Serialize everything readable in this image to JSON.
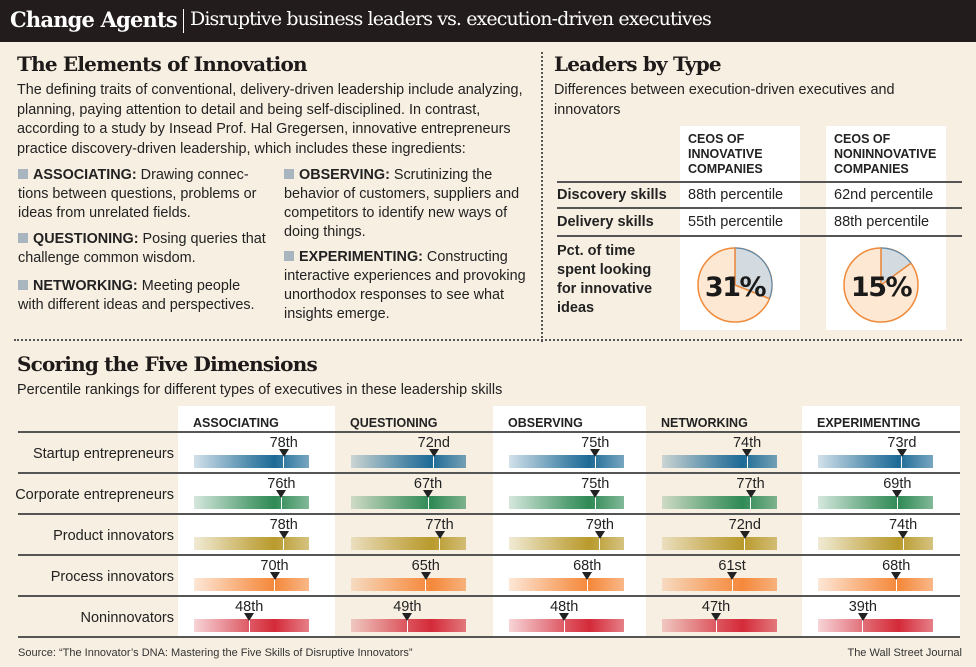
{
  "header": {
    "title": "Change Agents",
    "subtitle": "Disruptive business leaders vs. execution-driven executives"
  },
  "elements": {
    "title": "The Elements of Innovation",
    "intro": "The defining traits of conventional, delivery-driven leadership include analyzing, planning, paying attention to detail and being self-disciplined. In contrast, according to a study by Insead Prof. Hal Gregersen, innovative entrepreneurs practice discovery-driven leadership, which includes these ingredients:",
    "items": [
      {
        "term": "ASSOCIATING:",
        "text": " Drawing connec­tions between questions, problems or ideas from unrelated fields."
      },
      {
        "term": "QUESTIONING:",
        "text": " Posing queries that challenge common wisdom."
      },
      {
        "term": "NETWORKING:",
        "text": " Meeting people with different ideas and perspectives."
      },
      {
        "term": "OBSERVING:",
        "text": " Scrutinizing the behavior of customers, suppliers and competitors to identify new ways of doing things."
      },
      {
        "term": "EXPERIMENTING:",
        "text": " Constructing interactive experiences and provoking unorthodox responses to see what insights emerge."
      }
    ]
  },
  "leaders": {
    "title": "Leaders by Type",
    "subtitle": "Differences between execution-driven executives and innovators",
    "columns": [
      "CEOS OF INNOVATIVE COMPANIES",
      "CEOS OF NONINNOVATIVE COMPANIES"
    ],
    "rows": [
      {
        "label": "Discovery skills",
        "values": [
          "88th percentile",
          "62nd percentile"
        ]
      },
      {
        "label": "Delivery skills",
        "values": [
          "55th percentile",
          "88th percentile"
        ]
      }
    ],
    "pie_label": "Pct. of time spent looking for innovative ideas",
    "pies": [
      {
        "value": 31,
        "text": "31%"
      },
      {
        "value": 15,
        "text": "15%"
      }
    ],
    "pie_colors": {
      "slice": "#d3dbe0",
      "slice_border": "#5a88ac",
      "rest": "#fde8d3",
      "rest_border": "#f08a3a"
    }
  },
  "scoring": {
    "title": "Scoring the Five Dimensions",
    "subtitle": "Percentile rankings for different types of executives in these leadership skills"
  },
  "chart_data": {
    "type": "bar",
    "title": "Scoring the Five Dimensions",
    "subtitle": "Percentile rankings for different types of executives in these leadership skills",
    "categories": [
      "ASSOCIATING",
      "QUESTIONING",
      "OBSERVING",
      "NETWORKING",
      "EXPERIMENTING"
    ],
    "ylim": [
      0,
      100
    ],
    "series": [
      {
        "name": "Startup entrepreneurs",
        "color": "#1d6a96",
        "values": [
          78,
          72,
          75,
          74,
          73
        ],
        "labels": [
          "78th",
          "72nd",
          "75th",
          "74th",
          "73rd"
        ]
      },
      {
        "name": "Corporate entrepreneurs",
        "color": "#2f8a55",
        "values": [
          76,
          67,
          75,
          77,
          69
        ],
        "labels": [
          "76th",
          "67th",
          "75th",
          "77th",
          "69th"
        ]
      },
      {
        "name": "Product innovators",
        "color": "#b99a2c",
        "values": [
          78,
          77,
          79,
          72,
          74
        ],
        "labels": [
          "78th",
          "77th",
          "79th",
          "72nd",
          "74th"
        ]
      },
      {
        "name": "Process innovators",
        "color": "#f5883a",
        "values": [
          70,
          65,
          68,
          61,
          68
        ],
        "labels": [
          "70th",
          "65th",
          "68th",
          "61st",
          "68th"
        ]
      },
      {
        "name": "Noninnovators",
        "color": "#d42a38",
        "values": [
          48,
          49,
          48,
          47,
          39
        ],
        "labels": [
          "48th",
          "49th",
          "48th",
          "47th",
          "39th"
        ]
      }
    ]
  },
  "footer": {
    "source": "Source: “The Innovator’s DNA: Mastering the Five Skills of Disruptive Innovators”",
    "credit": "The Wall Street Journal"
  }
}
